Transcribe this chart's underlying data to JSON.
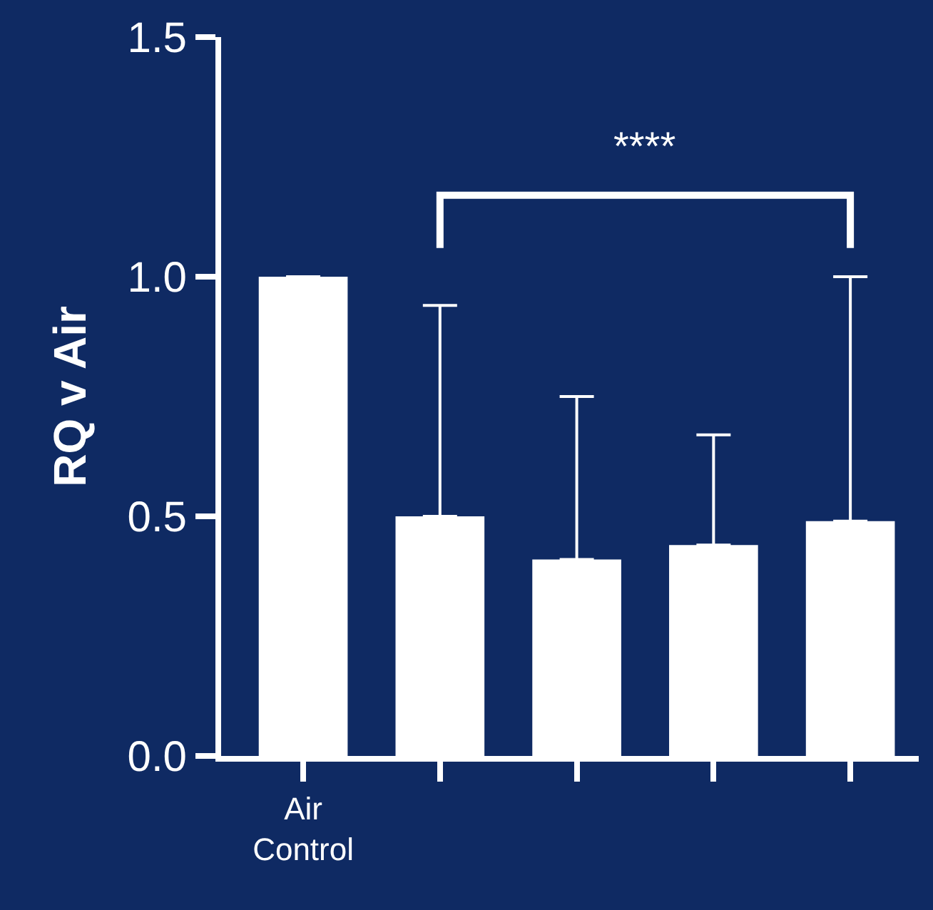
{
  "chart_data": {
    "type": "bar",
    "ylabel": "RQ v Air",
    "categories": [
      "Air\nControl",
      null,
      null,
      null,
      null
    ],
    "values": [
      1.0,
      0.5,
      0.41,
      0.44,
      0.49
    ],
    "errors": [
      null,
      [
        0.5,
        0.94
      ],
      [
        0.41,
        0.75
      ],
      [
        0.44,
        0.67
      ],
      [
        0.49,
        1.0
      ]
    ],
    "color": "#ffffff",
    "ylim": [
      0,
      1.5
    ],
    "yticks": [
      {
        "value": 0,
        "label": "0.0"
      },
      {
        "value": 0.5,
        "label": "0.5"
      },
      {
        "value": 1.0,
        "label": "1.0"
      },
      {
        "value": 1.5,
        "label": "1.5"
      }
    ],
    "annotations": [
      "****"
    ],
    "grid": false,
    "legend": false
  }
}
